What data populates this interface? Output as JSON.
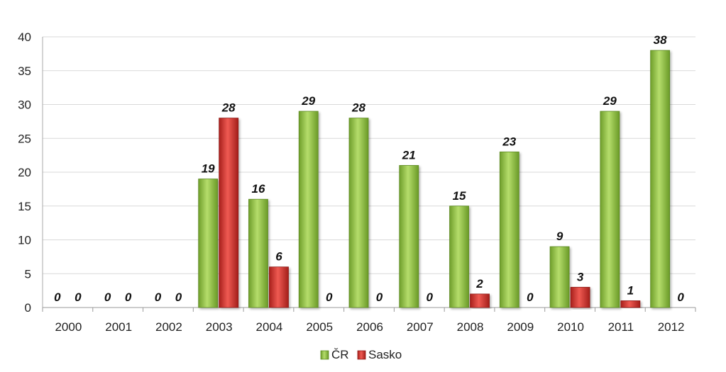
{
  "chart_data": {
    "type": "bar",
    "title": "",
    "xlabel": "",
    "ylabel": "",
    "categories": [
      "2000",
      "2001",
      "2002",
      "2003",
      "2004",
      "2005",
      "2006",
      "2007",
      "2008",
      "2009",
      "2010",
      "2011",
      "2012"
    ],
    "series": [
      {
        "name": "ČR",
        "color": "#8dc63f",
        "values": [
          0,
          0,
          0,
          19,
          16,
          29,
          28,
          21,
          15,
          23,
          9,
          29,
          38
        ]
      },
      {
        "name": "Sasko",
        "color": "#d9302c",
        "values": [
          0,
          0,
          0,
          28,
          6,
          0,
          0,
          0,
          2,
          0,
          3,
          1,
          0
        ]
      }
    ],
    "ylim": [
      0,
      40
    ],
    "yticks": [
      0,
      5,
      10,
      15,
      20,
      25,
      30,
      35,
      40
    ],
    "grid": true,
    "legend": "bottom",
    "data_labels": true
  }
}
